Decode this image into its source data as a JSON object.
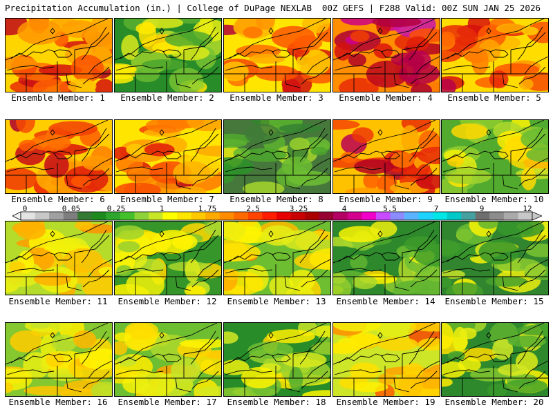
{
  "header": {
    "left": "Precipitation Accumulation (in.) | College of DuPage NEXLAB",
    "right": "00Z GEFS | F288 Valid: 00Z SUN JAN 25 2026"
  },
  "members": [
    {
      "label": "Ensemble Member: 1",
      "level": 3.2
    },
    {
      "label": "Ensemble Member: 2",
      "level": 1.5
    },
    {
      "label": "Ensemble Member: 3",
      "level": 3.0
    },
    {
      "label": "Ensemble Member: 4",
      "level": 3.8
    },
    {
      "label": "Ensemble Member: 5",
      "level": 3.1
    },
    {
      "label": "Ensemble Member: 6",
      "level": 3.3
    },
    {
      "label": "Ensemble Member: 7",
      "level": 3.0
    },
    {
      "label": "Ensemble Member: 8",
      "level": 0.8
    },
    {
      "label": "Ensemble Member: 9",
      "level": 3.4
    },
    {
      "label": "Ensemble Member: 10",
      "level": 1.8
    },
    {
      "label": "Ensemble Member: 11",
      "level": 2.3
    },
    {
      "label": "Ensemble Member: 12",
      "level": 1.6
    },
    {
      "label": "Ensemble Member: 13",
      "level": 2.0
    },
    {
      "label": "Ensemble Member: 14",
      "level": 1.4
    },
    {
      "label": "Ensemble Member: 15",
      "level": 1.3
    },
    {
      "label": "Ensemble Member: 16",
      "level": 2.1
    },
    {
      "label": "Ensemble Member: 17",
      "level": 2.0
    },
    {
      "label": "Ensemble Member: 18",
      "level": 1.5
    },
    {
      "label": "Ensemble Member: 19",
      "level": 2.4
    },
    {
      "label": "Ensemble Member: 20",
      "level": 1.4
    }
  ],
  "colorbar": {
    "tick_labels": [
      "0",
      "0.05",
      "0.25",
      "1",
      "1.75",
      "2.5",
      "3.25",
      "4",
      "5.5",
      "7",
      "9",
      "12"
    ],
    "colors": [
      "#e3e3e3",
      "#c8c8c8",
      "#a0a0a0",
      "#7e7e7e",
      "#347a34",
      "#1e8a1e",
      "#2ea62e",
      "#44c02c",
      "#8ed23a",
      "#c8e628",
      "#ffff00",
      "#ffe600",
      "#ffc800",
      "#ffaa00",
      "#ff8c00",
      "#ff6a00",
      "#ff4400",
      "#ff1e00",
      "#e60000",
      "#c80000",
      "#aa0000",
      "#960032",
      "#b40064",
      "#d2008c",
      "#f000c8",
      "#c84bff",
      "#8c8cff",
      "#5ab4ff",
      "#1ed2ff",
      "#00e6e6",
      "#00c8c8",
      "#46a0a0",
      "#6e6e6e",
      "#8c8c8c",
      "#aaaaaa",
      "#c8c8c8"
    ]
  }
}
